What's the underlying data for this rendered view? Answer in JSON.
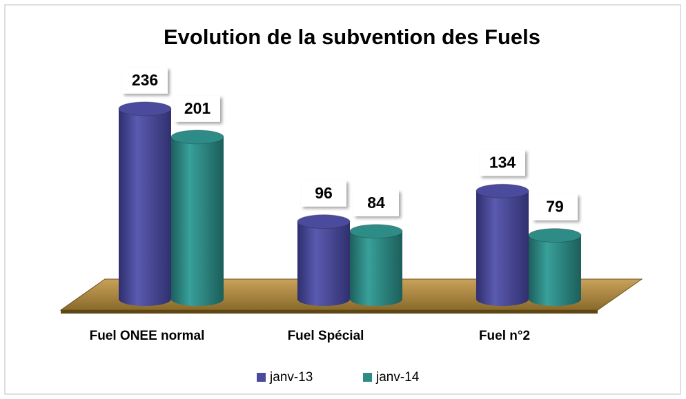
{
  "chart_data": {
    "type": "bar3d",
    "title": "Evolution de la subvention des Fuels",
    "categories": [
      "Fuel ONEE normal",
      "Fuel Spécial",
      "Fuel n°2"
    ],
    "series": [
      {
        "name": "janv-13",
        "color": "#4b4b9e",
        "values": [
          236,
          96,
          134
        ]
      },
      {
        "name": "janv-14",
        "color": "#2e8c87",
        "values": [
          201,
          84,
          79
        ]
      }
    ],
    "legend": "bottom"
  }
}
